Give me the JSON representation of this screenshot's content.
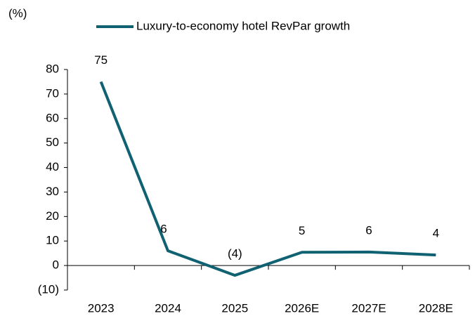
{
  "chart_data": {
    "type": "line",
    "y_axis_label": "(%)",
    "categories": [
      "2023",
      "2024",
      "2025",
      "2026E",
      "2027E",
      "2028E"
    ],
    "series": [
      {
        "name": "Luxury-to-economy hotel RevPar growth",
        "color": "#106272",
        "values": [
          75,
          6,
          -4,
          5.4,
          5.5,
          4.3
        ],
        "value_labels": [
          "75",
          "6",
          "(4)",
          "5",
          "6",
          "4"
        ]
      }
    ],
    "ylim": [
      -10,
      80
    ],
    "yticks": [
      {
        "value": -10,
        "label": "(10)"
      },
      0,
      10,
      20,
      30,
      40,
      50,
      60,
      70,
      80
    ],
    "legend": "top"
  }
}
